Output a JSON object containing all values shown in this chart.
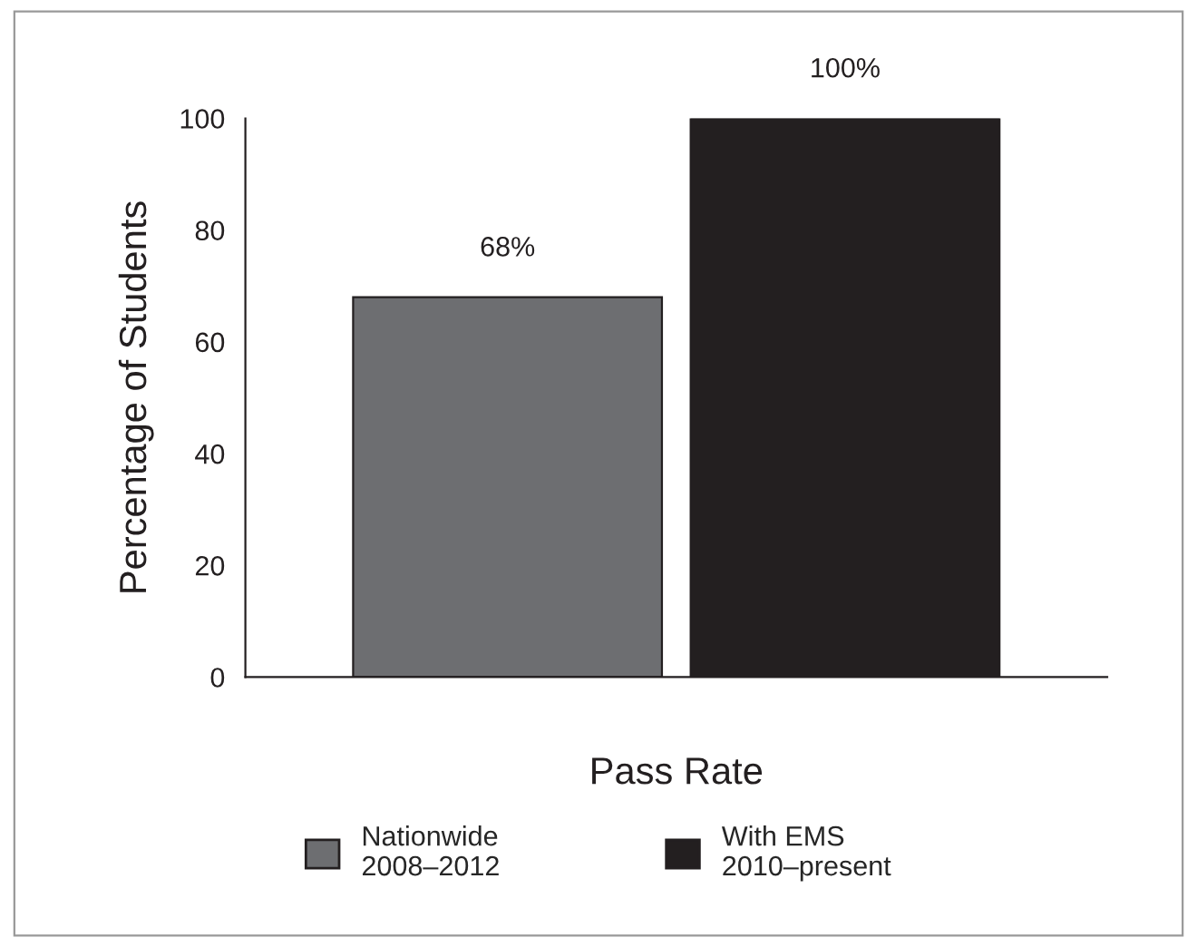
{
  "chart_data": {
    "type": "bar",
    "xlabel": "Pass Rate",
    "ylabel": "Percentage of Students",
    "categories": [
      null
    ],
    "series": [
      {
        "name": "Nationwide\n2008–2012",
        "color": "#6d6e71",
        "values": [
          68
        ],
        "value_labels": [
          "68%"
        ]
      },
      {
        "name": "With EMS\n2010–present",
        "color": "#231f20",
        "values": [
          100
        ],
        "value_labels": [
          "100%"
        ]
      }
    ],
    "ylim": [
      0,
      100
    ],
    "yticks": [
      0,
      20,
      40,
      60,
      80,
      100
    ],
    "grid": false,
    "legend": "bottom"
  }
}
